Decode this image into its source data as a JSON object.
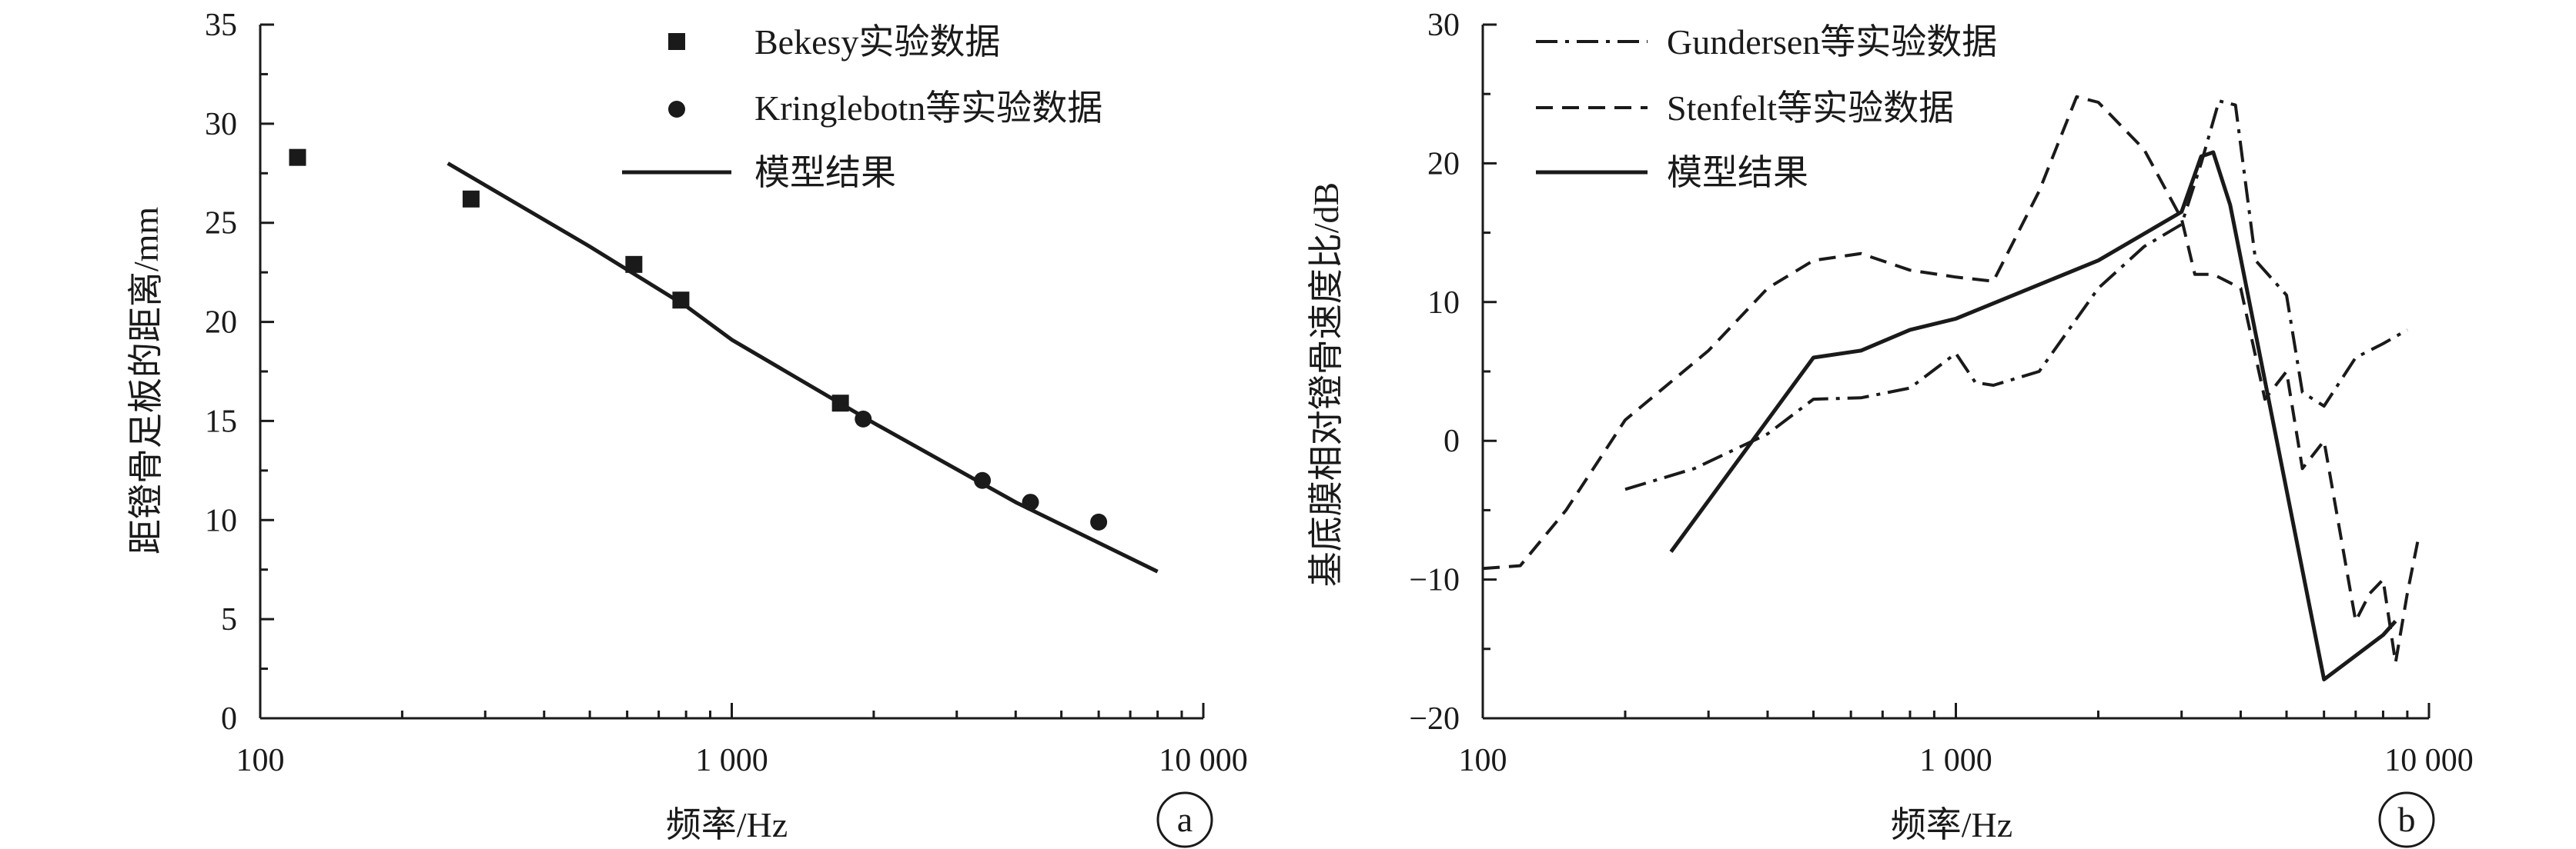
{
  "chart_data": [
    {
      "type": "line",
      "panel": "a",
      "xlabel": "频率/Hz",
      "ylabel": "距镫骨足板的距离/mm",
      "xscale": "log",
      "xlim": [
        100,
        10000
      ],
      "ylim": [
        0,
        35
      ],
      "x_ticks": [
        100,
        1000,
        10000
      ],
      "x_tick_labels": [
        "100",
        "1 000",
        "10 000"
      ],
      "y_ticks": [
        0,
        5,
        10,
        15,
        20,
        25,
        30,
        35
      ],
      "y_tick_labels": [
        "0",
        "5",
        "10",
        "15",
        "20",
        "25",
        "30",
        "35"
      ],
      "grid": false,
      "legend_position": "top-right",
      "series": [
        {
          "name": "Bekesy实验数据",
          "style": "square-marker",
          "points": [
            [
              120,
              28.3
            ],
            [
              280,
              26.2
            ],
            [
              620,
              22.9
            ],
            [
              780,
              21.1
            ],
            [
              1700,
              15.9
            ]
          ]
        },
        {
          "name": "Kringlebotn等实验数据",
          "style": "circle-marker",
          "points": [
            [
              1900,
              15.1
            ],
            [
              3400,
              12.0
            ],
            [
              4300,
              10.9
            ],
            [
              6000,
              9.9
            ]
          ]
        },
        {
          "name": "模型结果",
          "style": "solid",
          "points": [
            [
              250,
              28.0
            ],
            [
              500,
              23.8
            ],
            [
              800,
              20.8
            ],
            [
              1000,
              19.1
            ],
            [
              2000,
              14.9
            ],
            [
              4000,
              10.9
            ],
            [
              8000,
              7.4
            ]
          ]
        }
      ]
    },
    {
      "type": "line",
      "panel": "b",
      "xlabel": "频率/Hz",
      "ylabel": "基底膜相对镫骨速度比/dB",
      "xscale": "log",
      "xlim": [
        100,
        10000
      ],
      "ylim": [
        -20,
        30
      ],
      "x_ticks": [
        100,
        1000,
        10000
      ],
      "x_tick_labels": [
        "100",
        "1 000",
        "10 000"
      ],
      "y_ticks": [
        -20,
        -10,
        0,
        10,
        20,
        30
      ],
      "y_tick_labels": [
        "−20",
        "−10",
        "0",
        "10",
        "20",
        "30"
      ],
      "grid": false,
      "legend_position": "top-left",
      "series": [
        {
          "name": "Gundersen等实验数据",
          "style": "dash-dot",
          "points": [
            [
              200,
              -3.5
            ],
            [
              280,
              -2
            ],
            [
              400,
              0.5
            ],
            [
              500,
              3
            ],
            [
              630,
              3.1
            ],
            [
              800,
              3.8
            ],
            [
              1000,
              6.3
            ],
            [
              1100,
              4.2
            ],
            [
              1200,
              4
            ],
            [
              1500,
              5
            ],
            [
              2000,
              11
            ],
            [
              2500,
              14
            ],
            [
              3000,
              15.6
            ],
            [
              3300,
              20
            ],
            [
              3600,
              24.5
            ],
            [
              3900,
              24.2
            ],
            [
              4300,
              13
            ],
            [
              5000,
              10.5
            ],
            [
              5400,
              3.5
            ],
            [
              6000,
              2.5
            ],
            [
              7000,
              6
            ],
            [
              8000,
              7
            ],
            [
              9000,
              8
            ]
          ]
        },
        {
          "name": "Stenfelt等实验数据",
          "style": "dashed",
          "points": [
            [
              100,
              -9.2
            ],
            [
              120,
              -9
            ],
            [
              150,
              -5
            ],
            [
              200,
              1.5
            ],
            [
              300,
              6.5
            ],
            [
              400,
              11
            ],
            [
              500,
              13
            ],
            [
              630,
              13.5
            ],
            [
              800,
              12.3
            ],
            [
              1000,
              11.8
            ],
            [
              1200,
              11.5
            ],
            [
              1500,
              18
            ],
            [
              1800,
              24.8
            ],
            [
              2000,
              24.4
            ],
            [
              2500,
              21
            ],
            [
              3000,
              16
            ],
            [
              3200,
              12
            ],
            [
              3500,
              12
            ],
            [
              4000,
              11
            ],
            [
              4500,
              3
            ],
            [
              5000,
              5
            ],
            [
              5400,
              -2
            ],
            [
              6000,
              0
            ],
            [
              7000,
              -13
            ],
            [
              7500,
              -11
            ],
            [
              8000,
              -10
            ],
            [
              8500,
              -16
            ],
            [
              9000,
              -11
            ],
            [
              9500,
              -7
            ]
          ]
        },
        {
          "name": "模型结果",
          "style": "solid",
          "points": [
            [
              250,
              -8
            ],
            [
              500,
              6
            ],
            [
              630,
              6.5
            ],
            [
              800,
              8
            ],
            [
              1000,
              8.8
            ],
            [
              2000,
              13
            ],
            [
              3000,
              16.5
            ],
            [
              3300,
              20.5
            ],
            [
              3500,
              20.8
            ],
            [
              3800,
              17
            ],
            [
              6000,
              -17.2
            ],
            [
              8000,
              -14
            ],
            [
              8500,
              -13
            ]
          ]
        }
      ]
    }
  ]
}
